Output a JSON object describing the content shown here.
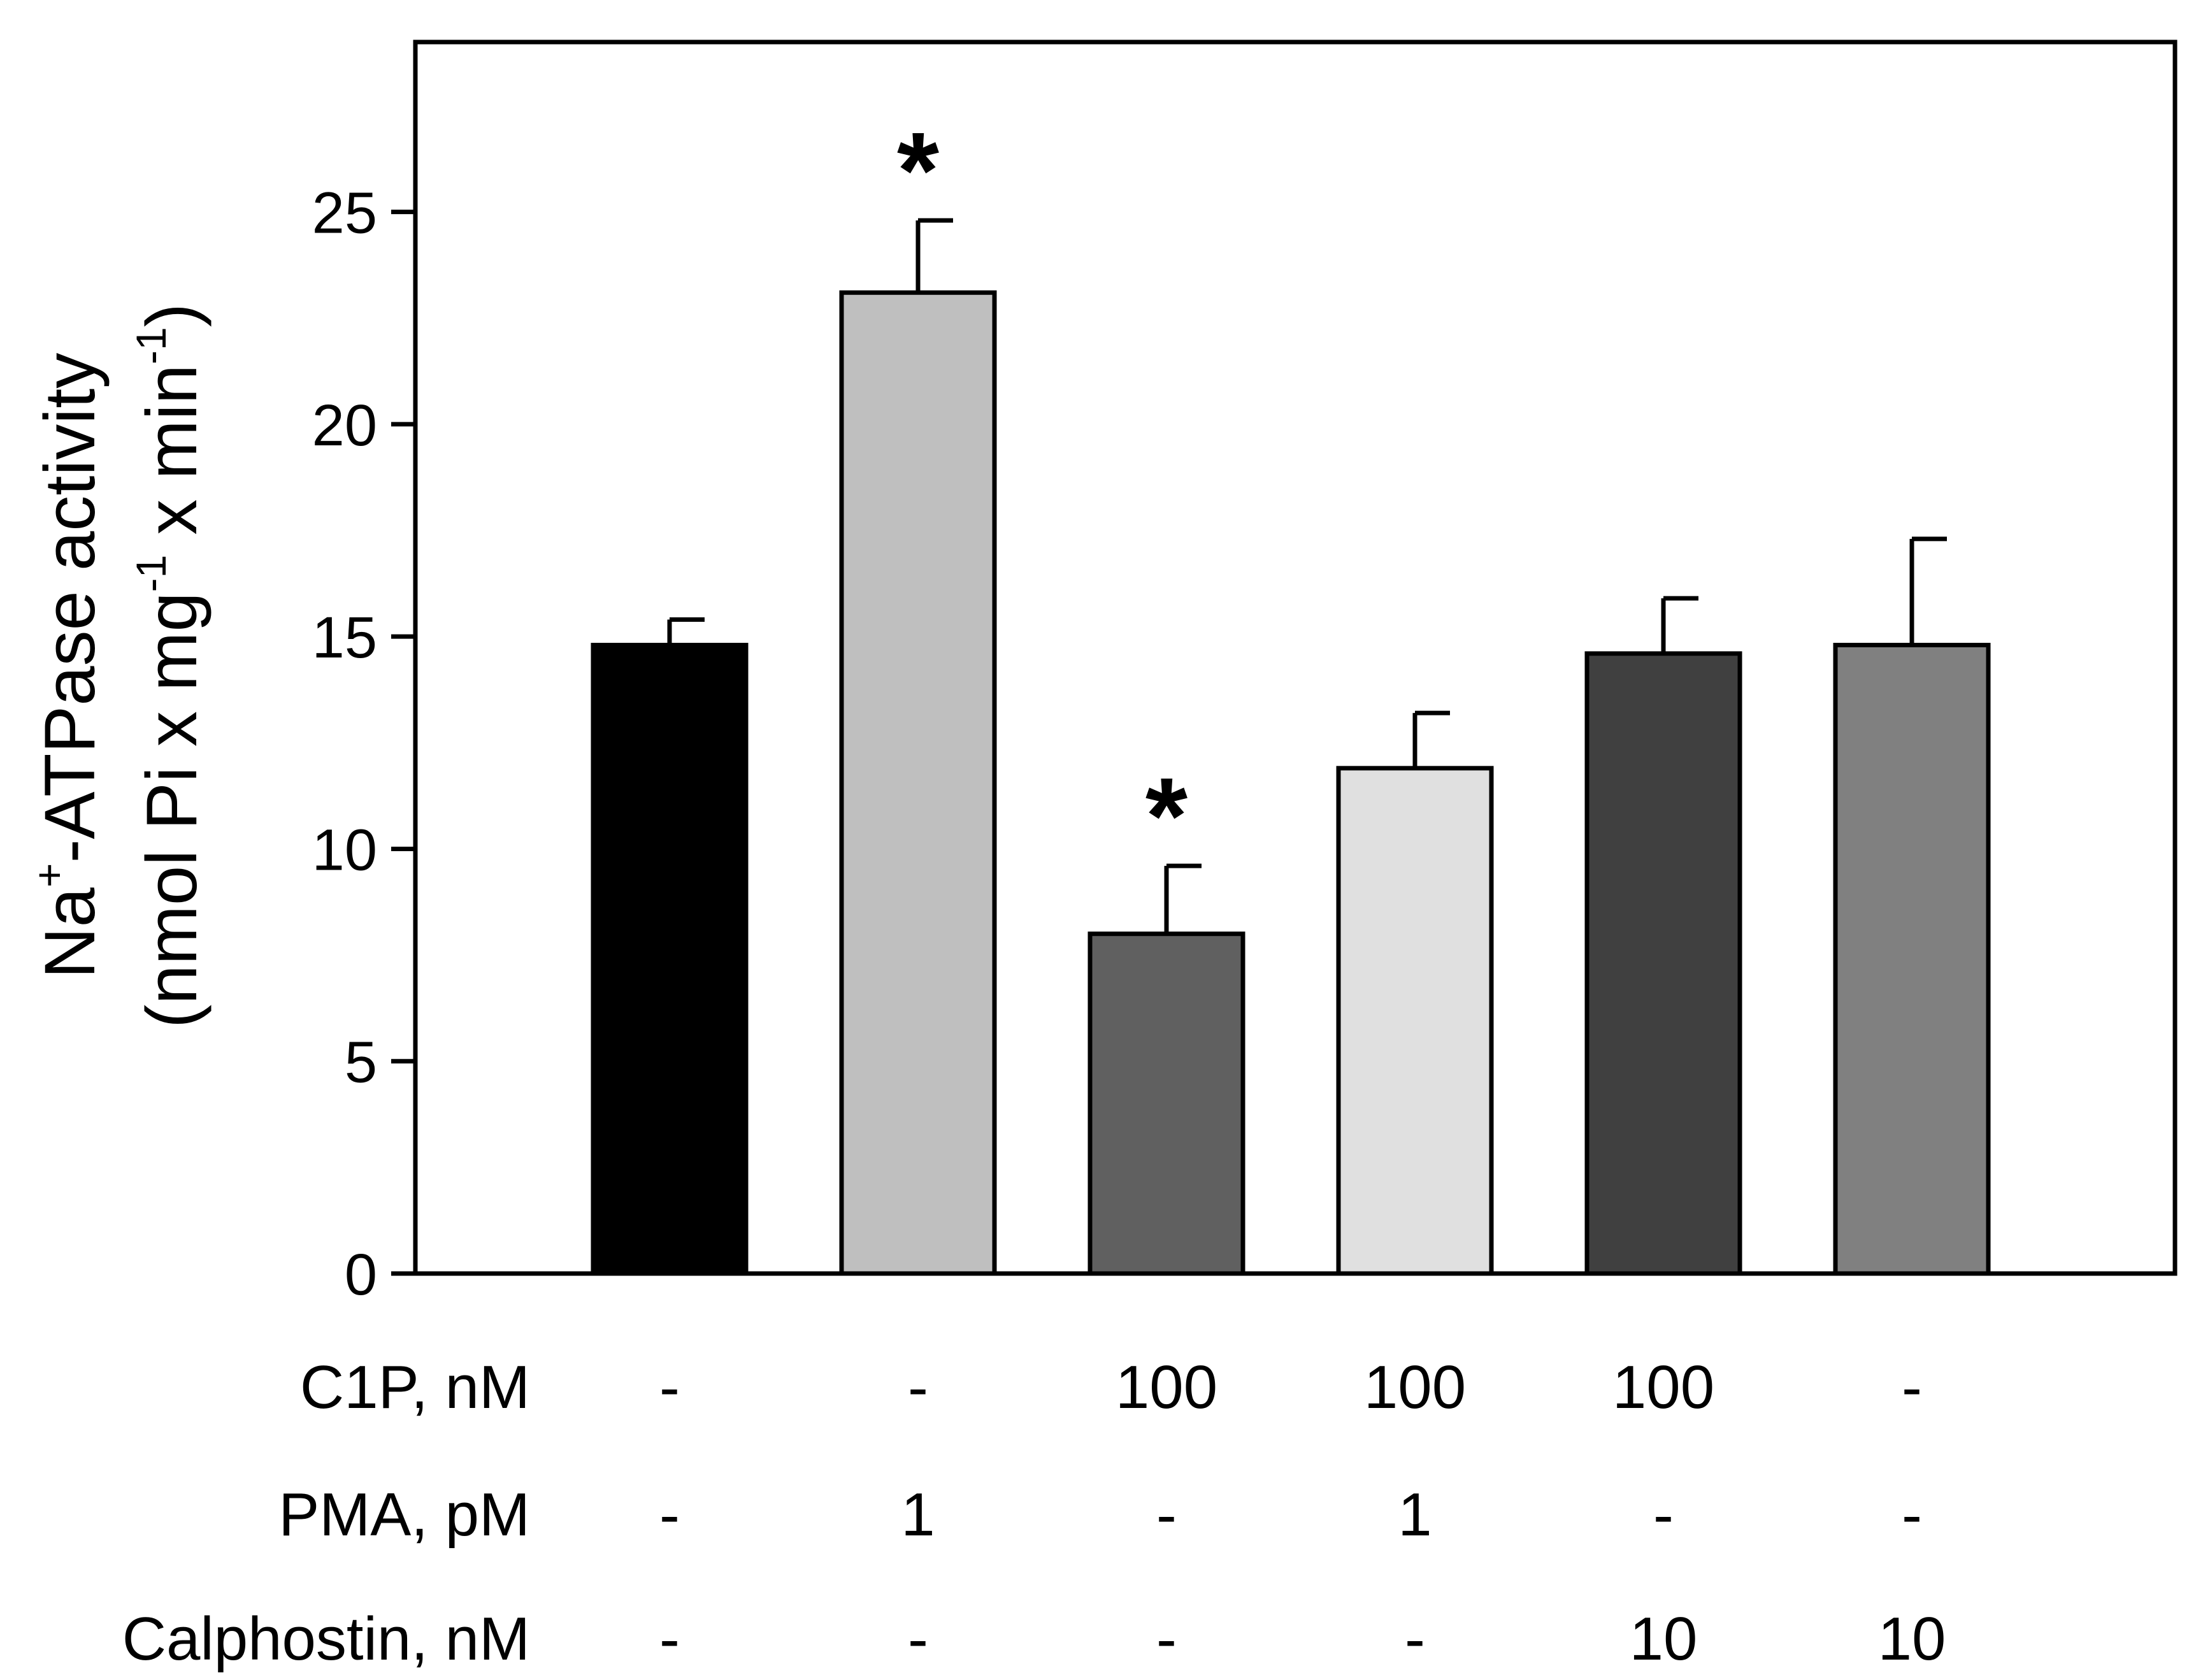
{
  "chart_data": {
    "type": "bar",
    "title": "",
    "xlabel": "",
    "ylabel": {
      "line1_prefix": "Na",
      "line1_sup": "+",
      "line1_suffix": "-ATPase activity",
      "line2_a": "(nmol Pi x mg",
      "line2_sup1": "-1",
      "line2_b": " x min",
      "line2_sup2": "-1",
      "line2_c": ")"
    },
    "ylim": [
      0,
      29
    ],
    "yticks": [
      0,
      5,
      10,
      15,
      20,
      25
    ],
    "ytick_labels": [
      "0",
      "5",
      "10",
      "15",
      "20",
      "25"
    ],
    "grid": false,
    "legend": "none",
    "bars": [
      {
        "value": 14.8,
        "error": 0.6,
        "color": "#000000",
        "significant": false
      },
      {
        "value": 23.1,
        "error": 1.7,
        "color": "#bfbfbf",
        "significant": true
      },
      {
        "value": 8.0,
        "error": 1.6,
        "color": "#606060",
        "significant": true
      },
      {
        "value": 11.9,
        "error": 1.3,
        "color": "#e0e0e0",
        "significant": false
      },
      {
        "value": 14.6,
        "error": 1.3,
        "color": "#404040",
        "significant": false
      },
      {
        "value": 14.8,
        "error": 2.5,
        "color": "#808080",
        "significant": false
      }
    ],
    "significance_marker": "*",
    "treatment_table": [
      {
        "label": "C1P, nM",
        "cells": [
          "-",
          "-",
          "100",
          "100",
          "100",
          "-"
        ]
      },
      {
        "label": "PMA, pM",
        "cells": [
          "-",
          "1",
          "-",
          "1",
          "-",
          "-"
        ]
      },
      {
        "label": "Calphostin, nM",
        "cells": [
          "-",
          "-",
          "-",
          "-",
          "10",
          "10"
        ]
      }
    ]
  }
}
